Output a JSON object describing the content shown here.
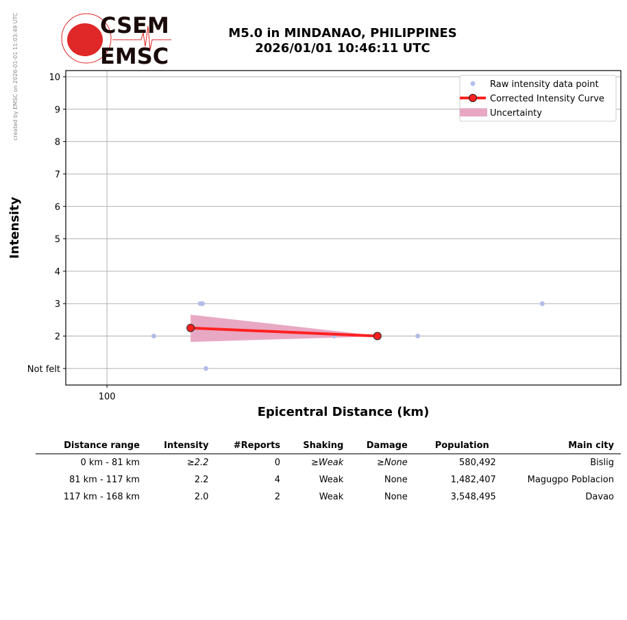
{
  "credit": "created by EMSC on 2026-01-01 11:03:49 UTC",
  "logo": {
    "top": "CSEM",
    "bottom": "EMSC"
  },
  "title": {
    "line1": "M5.0 in MINDANAO, PHILIPPINES",
    "line2": "2026/01/01 10:46:11 UTC"
  },
  "chart_data": {
    "type": "scatter",
    "xlabel": "Epicentral Distance (km)",
    "ylabel": "Intensity",
    "xscale": "log",
    "xlim": [
      92.4,
      268
    ],
    "ylim": [
      0.49,
      10.19
    ],
    "xticks": [
      {
        "value": 100,
        "label": "100"
      }
    ],
    "yticks": [
      {
        "value": 1,
        "label": "Not felt"
      },
      {
        "value": 2,
        "label": "2"
      },
      {
        "value": 3,
        "label": "3"
      },
      {
        "value": 4,
        "label": "4"
      },
      {
        "value": 5,
        "label": "5"
      },
      {
        "value": 6,
        "label": "6"
      },
      {
        "value": 7,
        "label": "7"
      },
      {
        "value": 8,
        "label": "8"
      },
      {
        "value": 9,
        "label": "9"
      },
      {
        "value": 10,
        "label": "10"
      }
    ],
    "grid": true,
    "legend_placement": "top-right",
    "raw_points": {
      "name": "Raw intensity data point",
      "color": "#b4bde8",
      "points": [
        [
          109.4,
          2
        ],
        [
          119.6,
          3
        ],
        [
          120.1,
          3
        ],
        [
          120.9,
          1
        ],
        [
          154.6,
          2
        ],
        [
          181.5,
          2
        ],
        [
          230.5,
          3
        ]
      ]
    },
    "curve": {
      "name": "Corrected Intensity Curve",
      "color": "#ff2020",
      "points": [
        [
          117.4,
          2.25
        ],
        [
          168,
          2.0
        ]
      ]
    },
    "uncertainty": {
      "name": "Uncertainty",
      "color": "#e8a8c4",
      "points": [
        [
          117.4,
          1.82,
          2.66
        ],
        [
          168,
          1.99,
          2.01
        ]
      ]
    }
  },
  "table": {
    "headers": [
      "Distance range",
      "Intensity",
      "#Reports",
      "Shaking",
      "Damage",
      "Population",
      "Main city"
    ],
    "rows": [
      [
        "0 km -   81 km",
        "≥2.2",
        "0",
        "≥Weak",
        "≥None",
        "580,492",
        "Bislig"
      ],
      [
        "81 km -  117 km",
        "2.2",
        "4",
        "Weak",
        "None",
        "1,482,407",
        "Magugpo Poblacion"
      ],
      [
        "117 km -  168 km",
        "2.0",
        "2",
        "Weak",
        "None",
        "3,548,495",
        "Davao"
      ]
    ]
  }
}
